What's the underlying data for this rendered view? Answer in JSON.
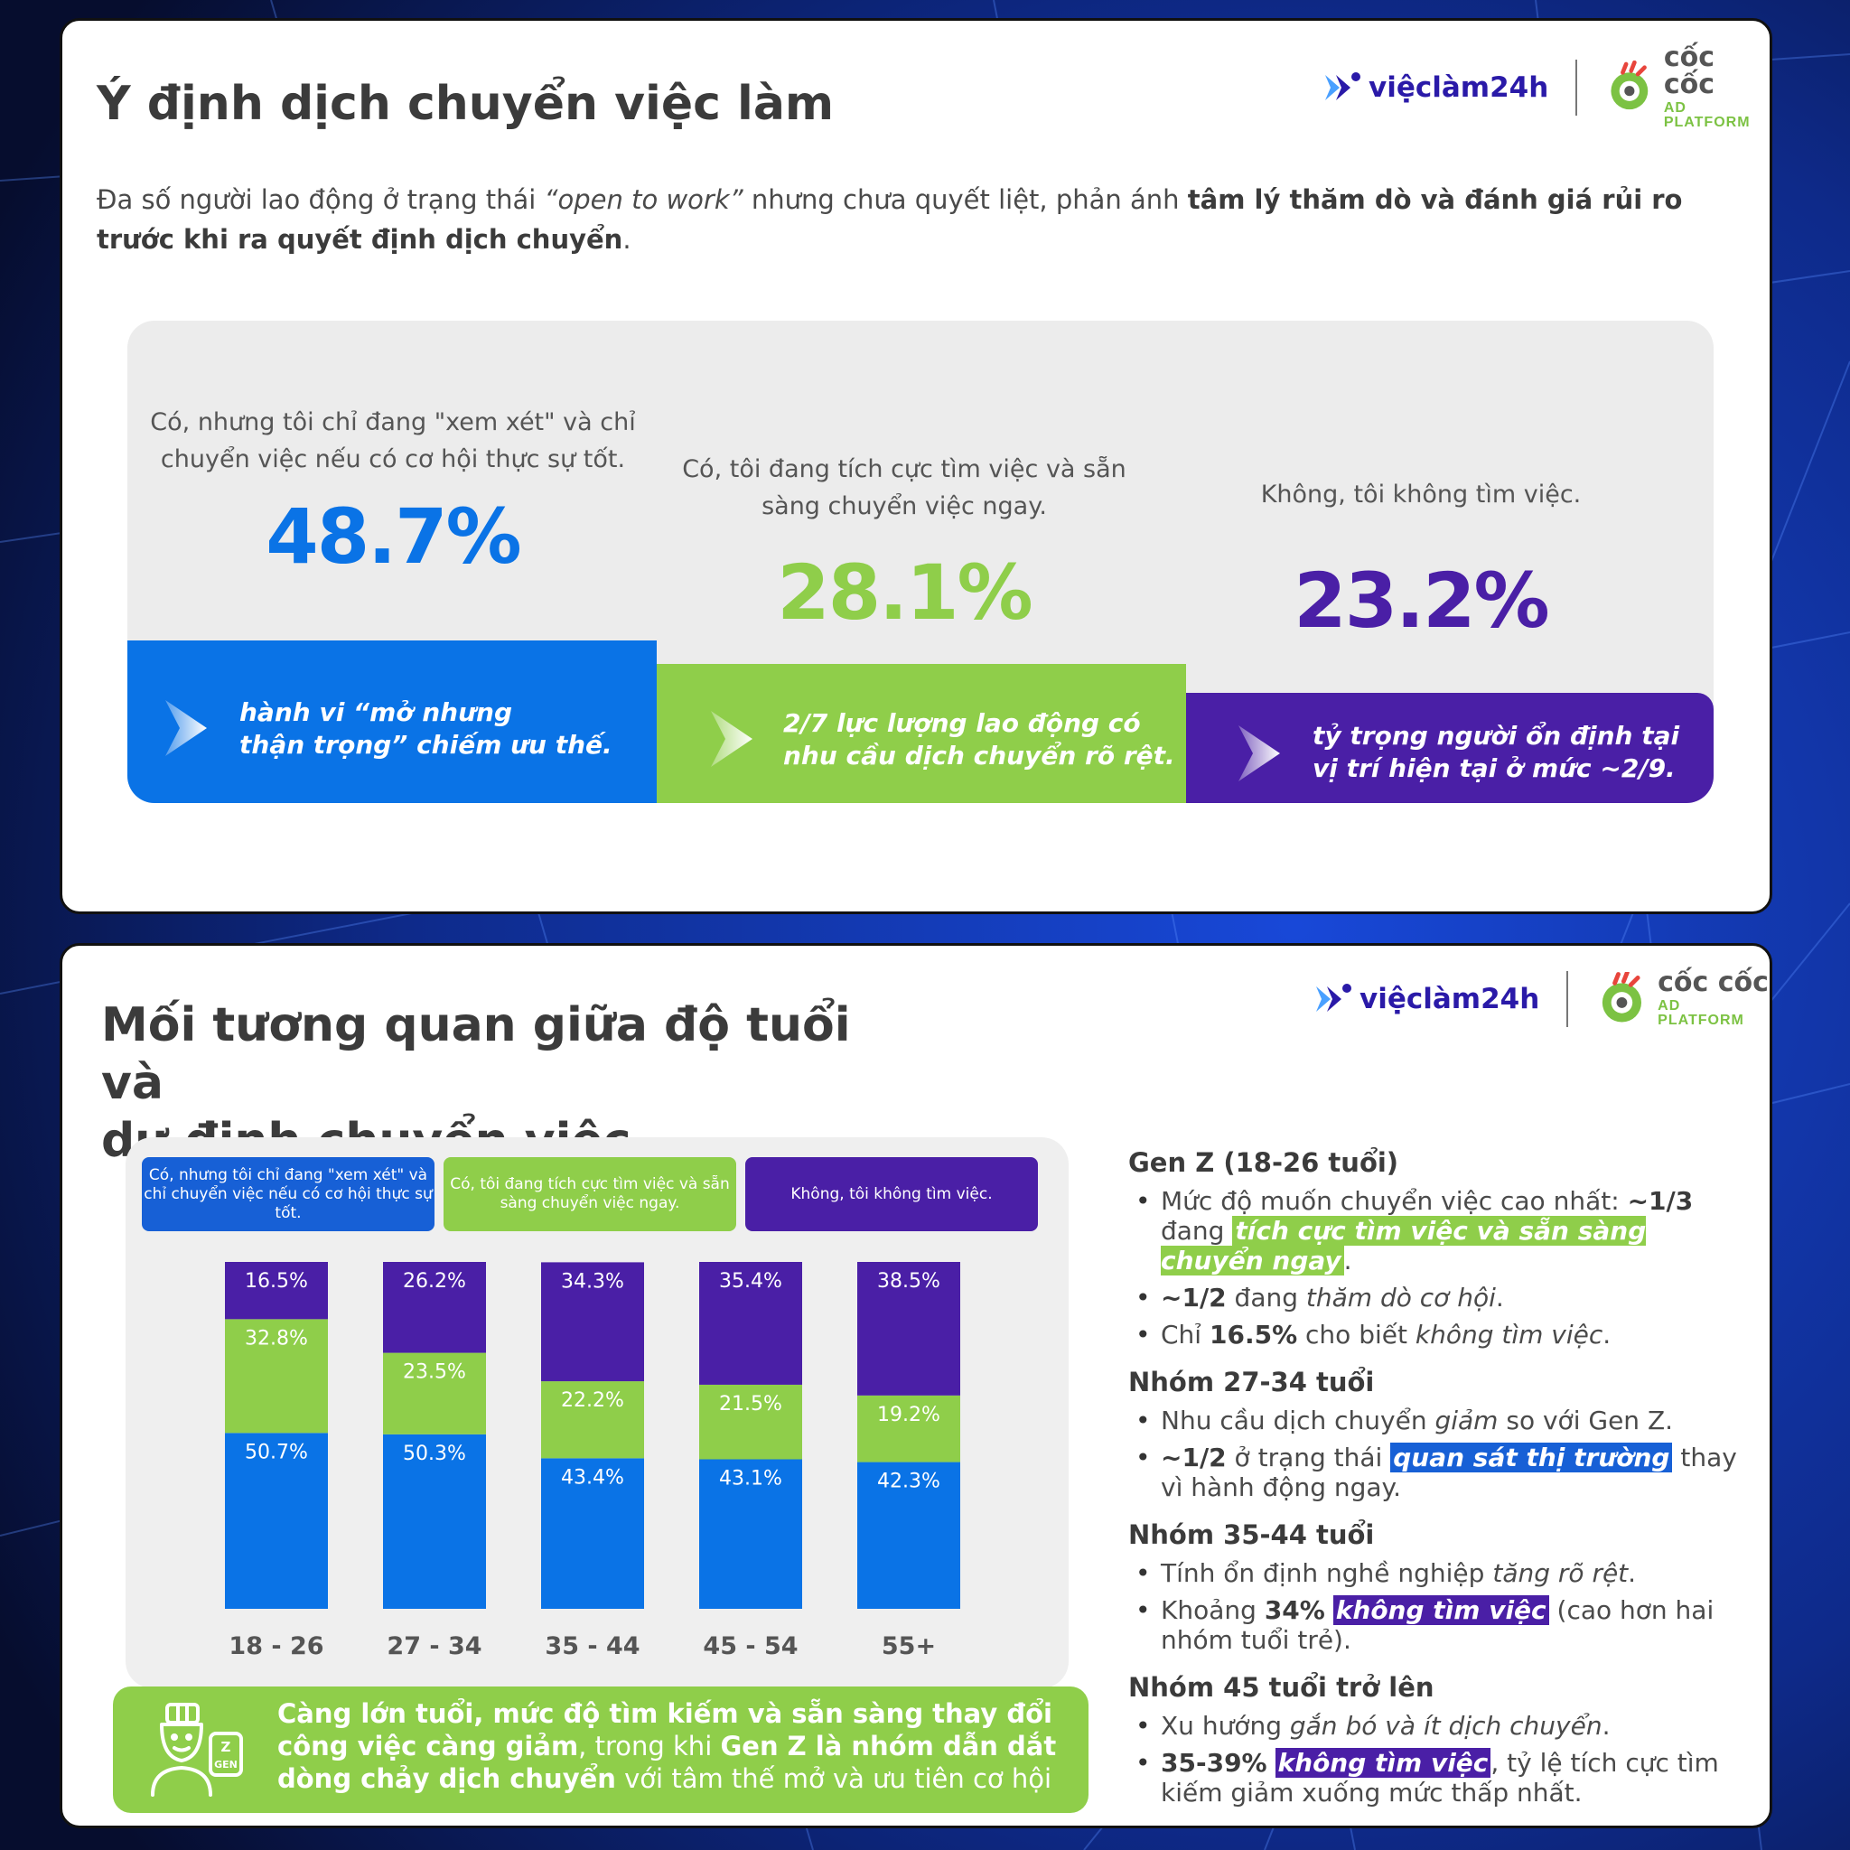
{
  "colors": {
    "blue": "#0a73e6",
    "green": "#8fce4a",
    "purple": "#4a1fa6",
    "title": "#3b3b3b",
    "text": "#4a4a4a"
  },
  "logos": {
    "vieclam": "việclàm24h",
    "coccoc": "cốc cốc",
    "coccoc_sub": "AD PLATFORM"
  },
  "slide1": {
    "title": "Ý định dịch chuyển việc làm",
    "intro": {
      "part1": "Đa số người lao động ở trạng thái ",
      "italic": "“open to work”",
      "part2": " nhưng chưa quyết liệt, phản ánh ",
      "bold": "tâm lý thăm dò và đánh giá rủi ro trước khi ra quyết định dịch chuyển",
      "end": "."
    },
    "stats": [
      {
        "question": "Có, nhưng tôi chỉ đang \"xem xét\" và chỉ chuyển việc nếu có cơ hội thực sự tốt.",
        "value": "48.7%",
        "note_line1": "hành vi “mở nhưng",
        "note_line2": "thận trọng” chiếm ưu thế."
      },
      {
        "question": "Có, tôi đang tích cực tìm việc và sẵn sàng chuyển việc ngay.",
        "value": "28.1%",
        "note_line1": "2/7 lực lượng lao động có",
        "note_line2": "nhu cầu dịch chuyển rõ rệt."
      },
      {
        "question": "Không, tôi không tìm việc.",
        "value": "23.2%",
        "note_line1": "tỷ trọng người ổn định tại",
        "note_line2": "vị trí hiện tại ở mức ~2/9."
      }
    ]
  },
  "slide2": {
    "title_line1": "Mối tương quan giữa độ tuổi và",
    "title_line2": "dự định chuyển việc",
    "takeaway": {
      "b1": "Càng lớn tuổi, mức độ tìm kiếm và sẵn sàng thay đổi công việc càng giảm",
      "t1": ", trong khi ",
      "b2": "Gen Z là nhóm dẫn dắt dòng chảy dịch chuyển",
      "t2": " với tâm thế mở và ưu tiên cơ hội"
    },
    "insights": [
      {
        "head": "Gen Z (18-26 tuổi)",
        "items": [
          {
            "a": "Mức độ muốn chuyển việc cao nhất: ",
            "b": "~1/3",
            "c": " đang ",
            "hl": "tích cực tìm việc và sẵn sàng chuyển ngay",
            "d": "."
          },
          {
            "b": "~1/2",
            "c": " đang ",
            "i": "thăm dò cơ hội",
            "d": "."
          },
          {
            "a": "Chỉ ",
            "b": "16.5%",
            "c": " cho biết ",
            "i": "không tìm việc",
            "d": "."
          }
        ]
      },
      {
        "head": "Nhóm 27-34 tuổi",
        "items": [
          {
            "a": "Nhu cầu dịch chuyển ",
            "i": "giảm",
            "d": " so với Gen Z."
          },
          {
            "b": "~1/2",
            "c": " ở trạng thái ",
            "hl": "quan sát thị trường",
            "d": " thay vì hành động ngay."
          }
        ]
      },
      {
        "head": "Nhóm 35-44 tuổi",
        "items": [
          {
            "a": "Tính ổn định nghề nghiệp ",
            "i": "tăng rõ rệt",
            "d": "."
          },
          {
            "a": "Khoảng ",
            "b": "34%",
            "c": " ",
            "hl": "không tìm việc",
            "d": " (cao hơn hai nhóm tuổi trẻ)."
          }
        ]
      },
      {
        "head": "Nhóm 45 tuổi trở lên",
        "items": [
          {
            "a": "Xu hướng ",
            "i": "gắn bó và ít dịch chuyển",
            "d": "."
          },
          {
            "b": "35-39%",
            "c": " ",
            "hl": "không tìm việc",
            "d": ", tỷ lệ tích cực tìm kiếm giảm xuống mức thấp nhất."
          }
        ]
      }
    ]
  },
  "chart_data": [
    {
      "type": "bar",
      "categories": [
        "Có, nhưng tôi chỉ đang \"xem xét\" và chỉ chuyển việc nếu có cơ hội thực sự tốt.",
        "Có, tôi đang tích cực tìm việc và sẵn sàng chuyển việc ngay.",
        "Không, tôi không tìm việc."
      ],
      "values": [
        48.7,
        28.1,
        23.2
      ],
      "title": "",
      "unit": "%"
    },
    {
      "type": "bar",
      "stacked": true,
      "categories": [
        "18 - 26",
        "27 - 34",
        "35 - 44",
        "45 - 54",
        "55+"
      ],
      "series": [
        {
          "name": "Có, nhưng tôi chỉ đang \"xem xét\" và chỉ chuyển việc nếu có cơ hội thực sự tốt.",
          "color": "#0a73e6",
          "values": [
            50.7,
            50.3,
            43.4,
            43.1,
            42.3
          ]
        },
        {
          "name": "Có, tôi đang tích cực tìm việc và sẵn sàng chuyển việc ngay.",
          "color": "#8fce4a",
          "values": [
            32.8,
            23.5,
            22.2,
            21.5,
            19.2
          ]
        },
        {
          "name": "Không, tôi không tìm việc.",
          "color": "#4a1fa6",
          "values": [
            16.5,
            26.2,
            34.3,
            35.4,
            38.5
          ]
        }
      ],
      "ylim": [
        0,
        100
      ],
      "unit": "%",
      "legend": "top",
      "grid": false
    }
  ]
}
